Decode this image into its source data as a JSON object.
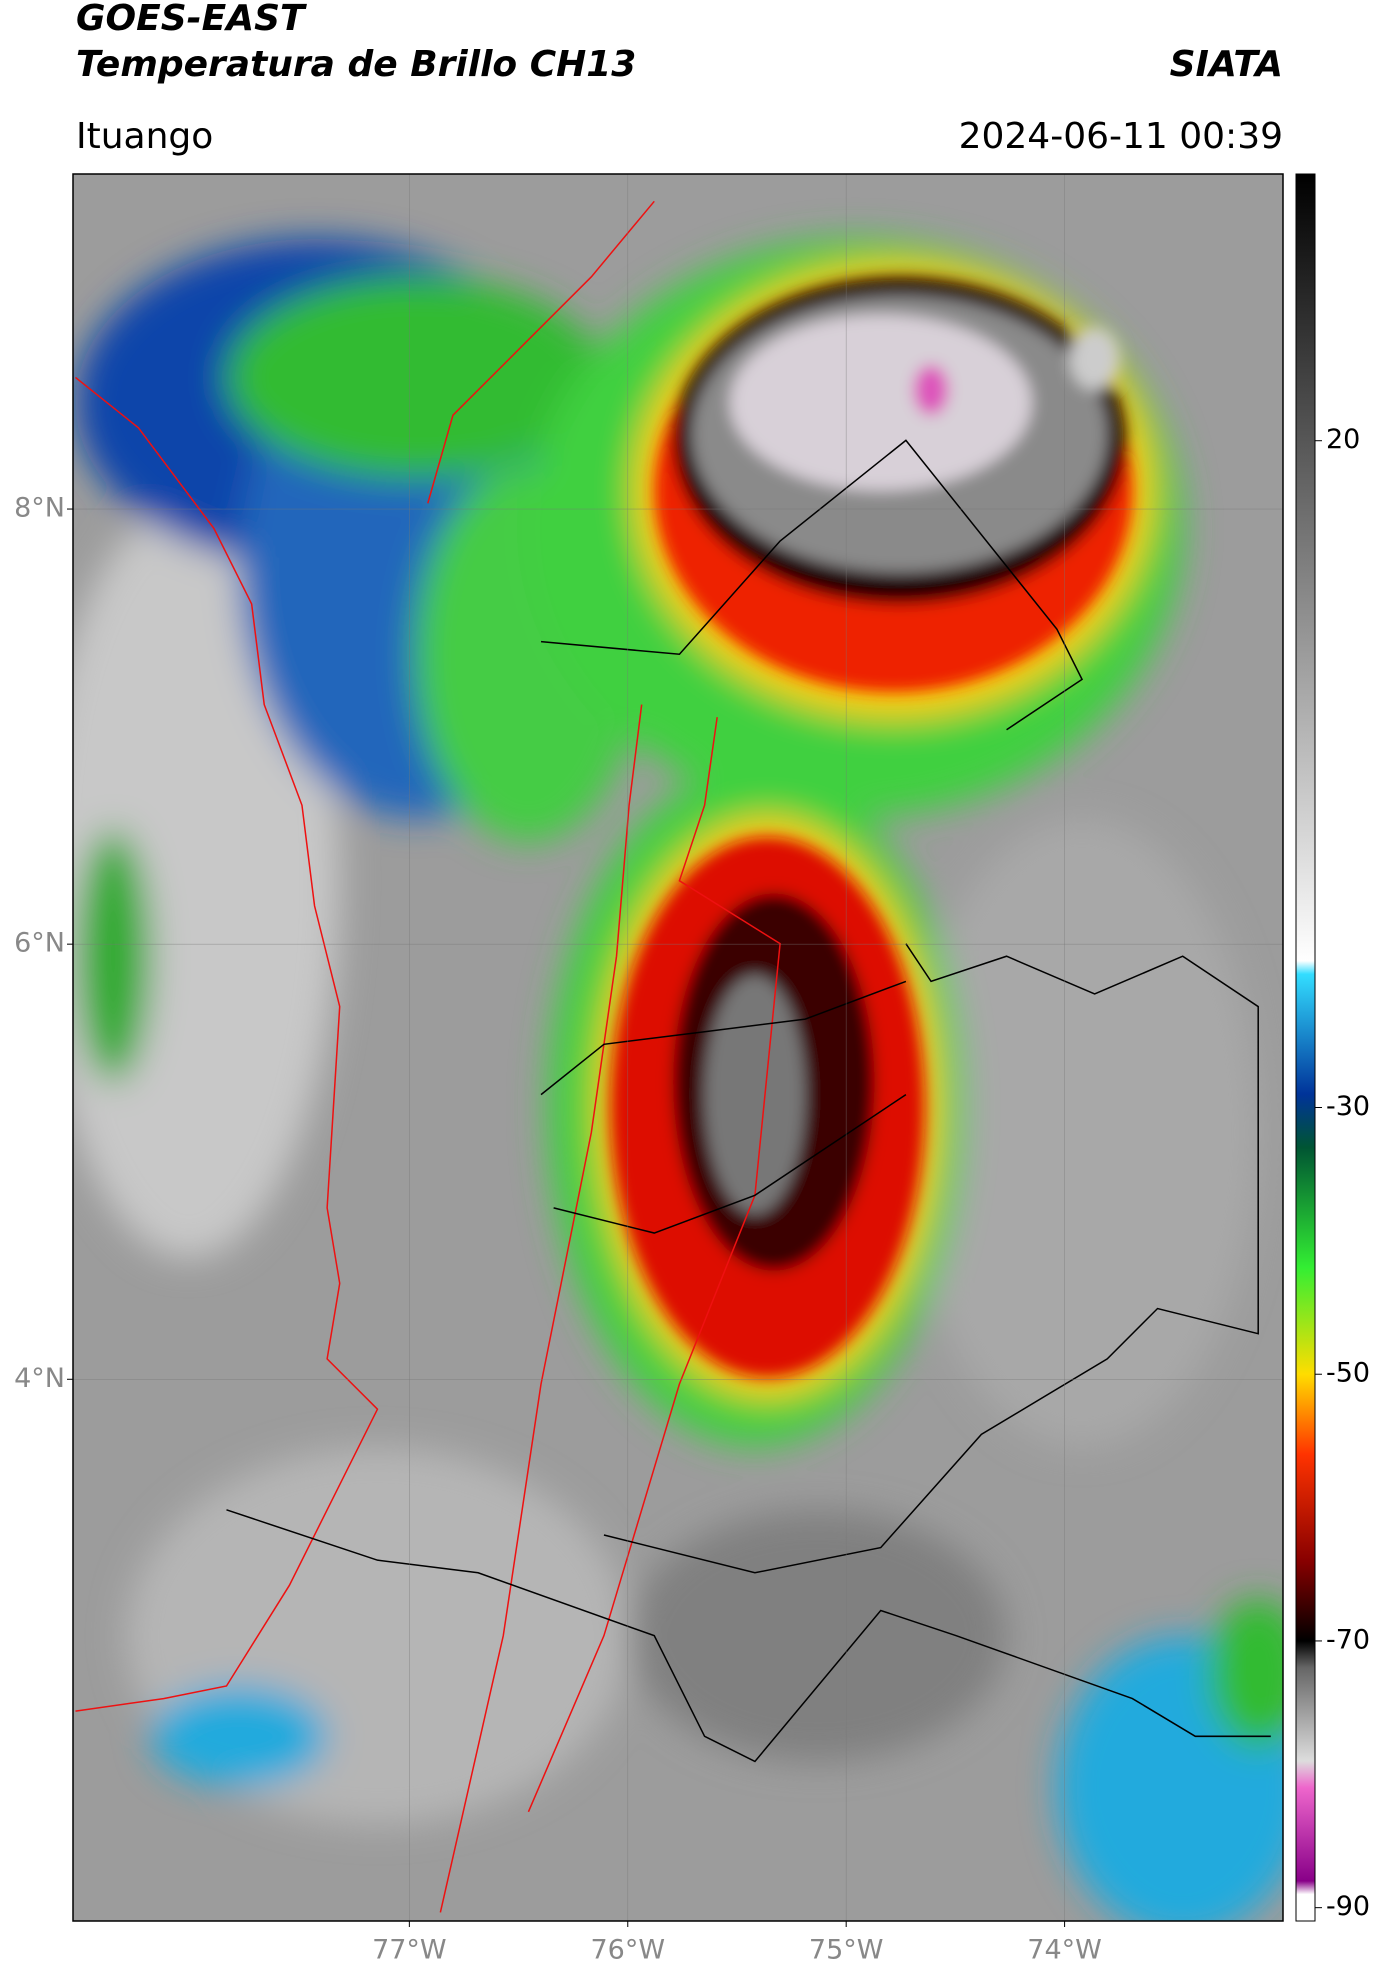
{
  "header": {
    "title": "GOES-EAST",
    "subtitle": "Temperatura de Brillo CH13",
    "agency": "SIATA",
    "location": "Ituango",
    "datetime": "2024-06-11 00:39"
  },
  "map": {
    "xlim": [
      -78.54,
      -73.0
    ],
    "ylim": [
      1.51,
      9.54
    ],
    "xticks": [
      {
        "value": -77,
        "label": "77°W"
      },
      {
        "value": -76,
        "label": "76°W"
      },
      {
        "value": -75,
        "label": "75°W"
      },
      {
        "value": -74,
        "label": "74°W"
      }
    ],
    "yticks": [
      {
        "value": 4,
        "label": "4°N"
      },
      {
        "value": 6,
        "label": "6°N"
      },
      {
        "value": 8,
        "label": "8°N"
      }
    ],
    "grid": true
  },
  "colorbar": {
    "lim": [
      -91,
      40
    ],
    "ticks": [
      -90,
      -70,
      -50,
      -30,
      20
    ],
    "stops": [
      {
        "value": 40,
        "color": "#000000"
      },
      {
        "value": -19,
        "color": "#ffffff"
      },
      {
        "value": -20,
        "color": "#33ddff"
      },
      {
        "value": -29,
        "color": "#003399"
      },
      {
        "value": -33,
        "color": "#005533"
      },
      {
        "value": -42,
        "color": "#33ee33"
      },
      {
        "value": -50,
        "color": "#ffdd00"
      },
      {
        "value": -56,
        "color": "#ff3300"
      },
      {
        "value": -64,
        "color": "#880000"
      },
      {
        "value": -70,
        "color": "#000000"
      },
      {
        "value": -72,
        "color": "#666666"
      },
      {
        "value": -79,
        "color": "#dddddd"
      },
      {
        "value": -81,
        "color": "#ee66cc"
      },
      {
        "value": -88,
        "color": "#880088"
      },
      {
        "value": -89,
        "color": "#ffffff"
      }
    ]
  }
}
